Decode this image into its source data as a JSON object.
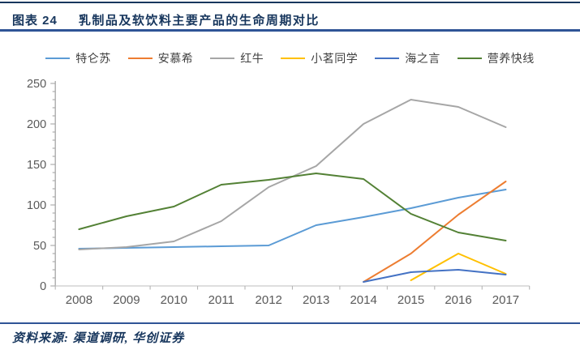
{
  "figure": {
    "label": "图表 24",
    "title": "乳制品及软饮料主要产品的生命周期对比"
  },
  "source_note": "资料来源: 渠道调研, 华创证券",
  "chart_data": {
    "type": "line",
    "title": "乳制品及软饮料主要产品的生命周期对比",
    "categories": [
      "2008",
      "2009",
      "2010",
      "2011",
      "2012",
      "2013",
      "2014",
      "2015",
      "2016",
      "2017"
    ],
    "series": [
      {
        "name": "特仑苏",
        "color": "#5B9BD5",
        "values": [
          46,
          47,
          48,
          49,
          50,
          75,
          85,
          96,
          109,
          119
        ]
      },
      {
        "name": "安慕希",
        "color": "#ED7D31",
        "values": [
          null,
          null,
          null,
          null,
          null,
          null,
          5,
          40,
          88,
          129
        ]
      },
      {
        "name": "红牛",
        "color": "#A6A6A6",
        "values": [
          45,
          48,
          55,
          80,
          122,
          148,
          200,
          230,
          221,
          196
        ]
      },
      {
        "name": "小茗同学",
        "color": "#FFC000",
        "values": [
          null,
          null,
          null,
          null,
          null,
          null,
          null,
          7,
          40,
          15
        ]
      },
      {
        "name": "海之言",
        "color": "#4472C4",
        "values": [
          null,
          null,
          null,
          null,
          null,
          null,
          5,
          17,
          20,
          14
        ]
      },
      {
        "name": "营养快线",
        "color": "#538135",
        "values": [
          70,
          86,
          98,
          125,
          131,
          139,
          132,
          89,
          66,
          56
        ]
      }
    ],
    "xlabel": "",
    "ylabel": "",
    "ylim": [
      0,
      250
    ],
    "ytick_major": 50,
    "ytick_minor": 10,
    "grid": false,
    "legend_position": "top",
    "axis_label_color": "#595959",
    "axis_line_color": "#A6A6A6"
  }
}
